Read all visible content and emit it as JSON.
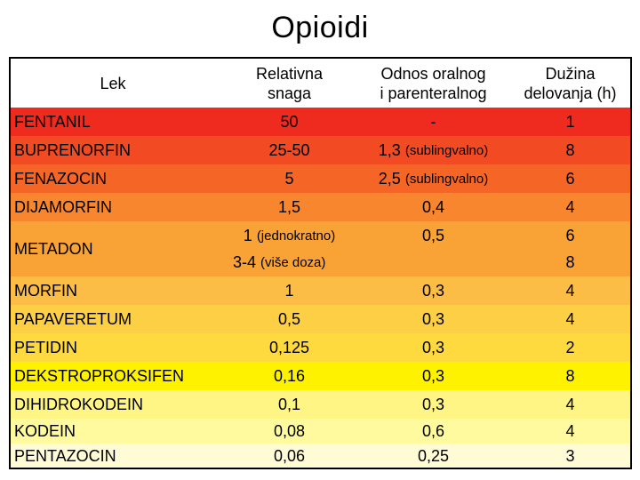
{
  "title": "Opioidi",
  "header": {
    "col1": "Lek",
    "col2a": "Relativna",
    "col2b": "snaga",
    "col3a": "Odnos oralnog",
    "col3b": "i parenteralnog",
    "col4a": "Dužina",
    "col4b": "delovanja (h)"
  },
  "rows": [
    {
      "name": "FENTANIL",
      "strength": "50",
      "ratio": "-",
      "ratio_note": "",
      "duration": "1",
      "color": "#ef2a1e"
    },
    {
      "name": "BUPRENORFIN",
      "strength": "25-50",
      "ratio": "1,3",
      "ratio_note": "(sublingvalno)",
      "duration": "8",
      "color": "#f24a22"
    },
    {
      "name": "FENAZOCIN",
      "strength": "5",
      "ratio": "2,5",
      "ratio_note": "(sublingvalno)",
      "duration": "6",
      "color": "#f56526"
    },
    {
      "name": "DIJAMORFIN",
      "strength": "1,5",
      "ratio": "0,4",
      "ratio_note": "",
      "duration": "4",
      "color": "#f7862e"
    },
    {
      "name": "MORFIN",
      "strength": "1",
      "ratio": "0,3",
      "ratio_note": "",
      "duration": "4",
      "color": "#fbbd45"
    },
    {
      "name": "PAPAVERETUM",
      "strength": "0,5",
      "ratio": "0,3",
      "ratio_note": "",
      "duration": "4",
      "color": "#fdcf45"
    },
    {
      "name": "PETIDIN",
      "strength": "0,125",
      "ratio": "0,3",
      "ratio_note": "",
      "duration": "2",
      "color": "#feda3f"
    },
    {
      "name": "DEKSTROPROKSIFEN",
      "strength": "0,16",
      "ratio": "0,3",
      "ratio_note": "",
      "duration": "8",
      "color": "#fff200"
    },
    {
      "name": "DIHIDROKODEIN",
      "strength": "0,1",
      "ratio": "0,3",
      "ratio_note": "",
      "duration": "4",
      "color": "#fff584"
    },
    {
      "name": "KODEIN",
      "strength": "0,08",
      "ratio": "0,6",
      "ratio_note": "",
      "duration": "4",
      "color": "#fffa9d"
    },
    {
      "name": "PENTAZOCIN",
      "strength": "0,06",
      "ratio": "0,25",
      "ratio_note": "",
      "duration": "3",
      "color": "#fffbd4"
    }
  ],
  "metadon": {
    "name": "METADON",
    "strength1": "1",
    "strength1_note": "(jednokratno)",
    "ratio": "0,5",
    "duration1": "6",
    "strength2": "3-4",
    "strength2_note": "(više doza)",
    "duration2": "8",
    "color": "#f9a236"
  }
}
